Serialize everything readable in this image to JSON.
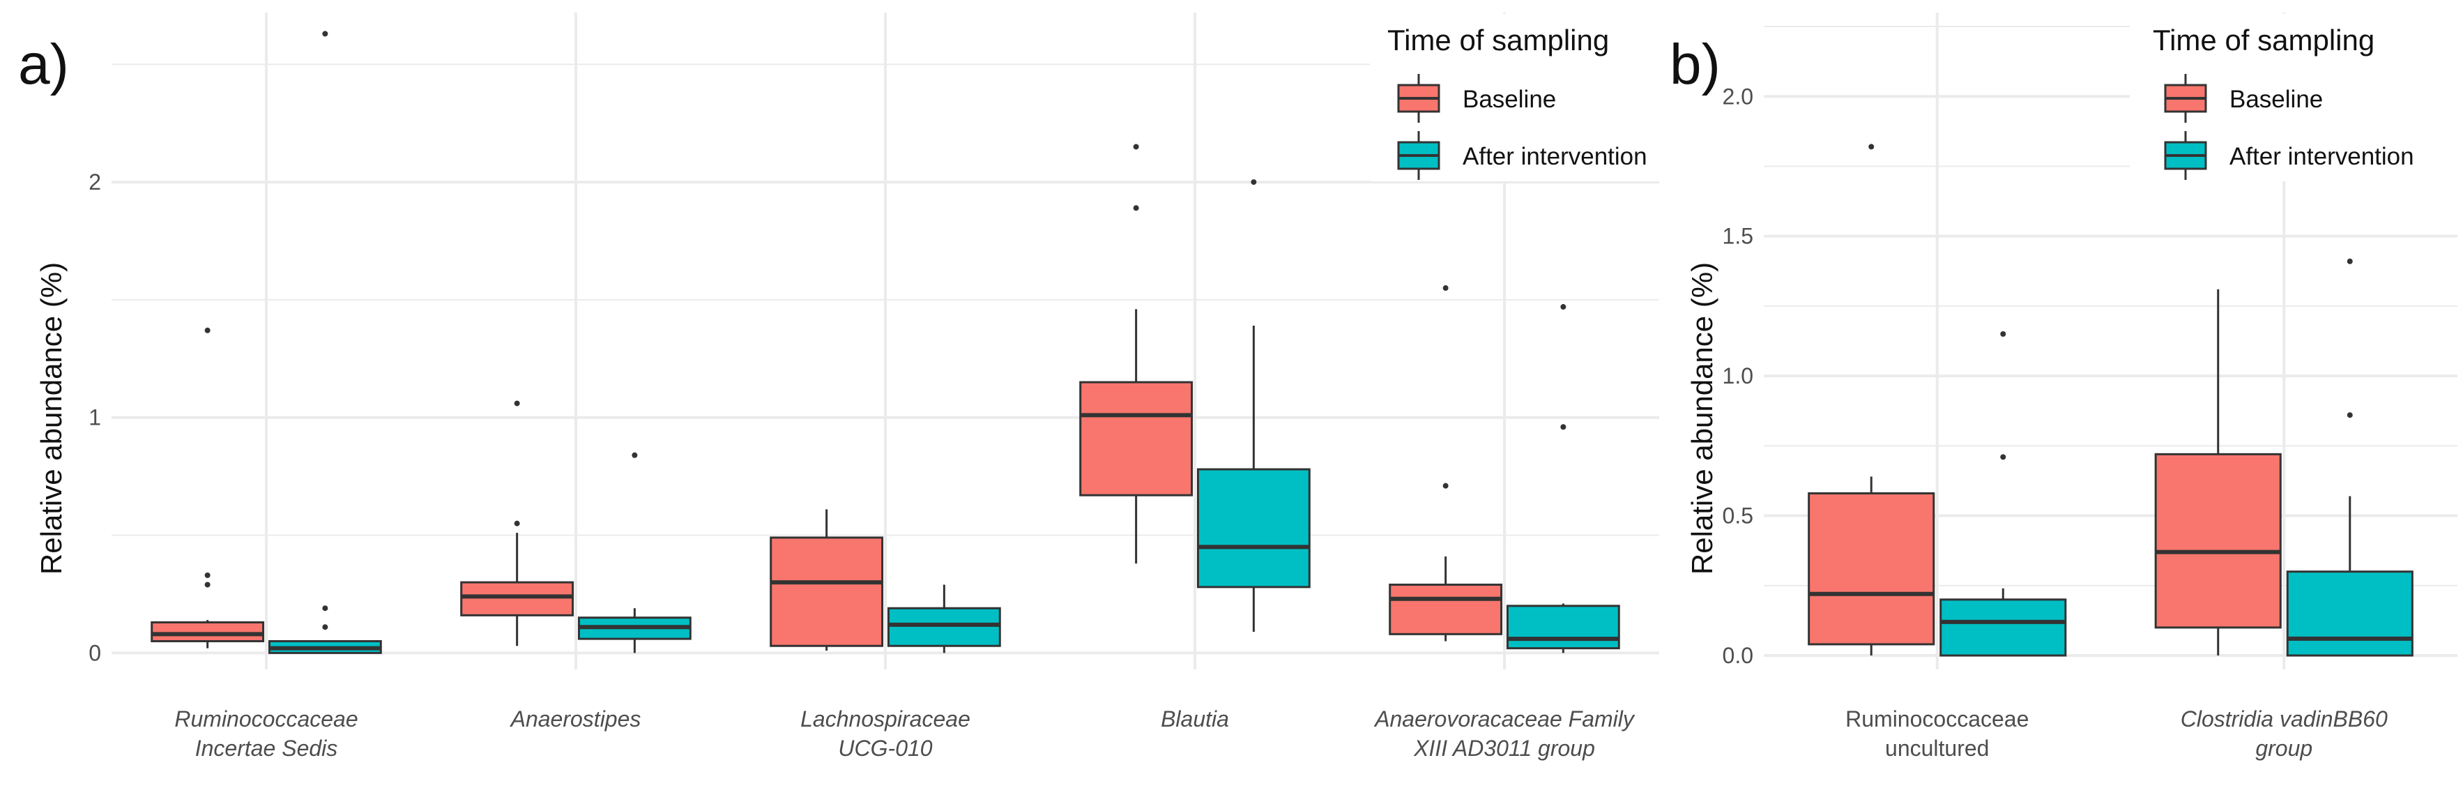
{
  "colors": {
    "baseline": "#f8766d",
    "after": "#00bfc4",
    "box_stroke": "#333333",
    "grid": "#ebebeb"
  },
  "chart_data": [
    {
      "panel": "a)",
      "type": "boxplot",
      "ylabel": "Relative abundance (%)",
      "ylim": [
        -0.07,
        2.72
      ],
      "yticks": [
        0,
        1,
        2
      ],
      "yticklabels": [
        "0",
        "1",
        "2"
      ],
      "grid": true,
      "legend": {
        "title": "Time of sampling",
        "placement": "top-right",
        "entries": [
          "Baseline",
          "After intervention"
        ]
      },
      "categories": [
        {
          "lines": [
            "Ruminococcaceae",
            "Incertae Sedis"
          ],
          "italic": true
        },
        {
          "lines": [
            "Anaerostipes"
          ],
          "italic": true
        },
        {
          "lines": [
            "Lachnospiraceae",
            "UCG-010"
          ],
          "italic": true
        },
        {
          "lines": [
            "Blautia"
          ],
          "italic": true
        },
        {
          "lines": [
            "Anaerovoracaceae Family",
            "XIII AD3011 group"
          ],
          "italic": true
        }
      ],
      "boxes": [
        [
          {
            "q1": 0.05,
            "median": 0.08,
            "q3": 0.13,
            "lower": 0.02,
            "upper": 0.14,
            "outliers": [
              1.37,
              0.33,
              0.29
            ]
          },
          {
            "q1": 0.0,
            "median": 0.02,
            "q3": 0.05,
            "lower": 0.0,
            "upper": 0.05,
            "outliers": [
              2.63,
              0.19,
              0.11
            ]
          }
        ],
        [
          {
            "q1": 0.16,
            "median": 0.24,
            "q3": 0.3,
            "lower": 0.03,
            "upper": 0.51,
            "outliers": [
              1.06,
              0.55
            ]
          },
          {
            "q1": 0.06,
            "median": 0.11,
            "q3": 0.15,
            "lower": 0.0,
            "upper": 0.19,
            "outliers": [
              0.84
            ]
          }
        ],
        [
          {
            "q1": 0.03,
            "median": 0.3,
            "q3": 0.49,
            "lower": 0.01,
            "upper": 0.61,
            "outliers": []
          },
          {
            "q1": 0.03,
            "median": 0.12,
            "q3": 0.19,
            "lower": 0.0,
            "upper": 0.29,
            "outliers": []
          }
        ],
        [
          {
            "q1": 0.67,
            "median": 1.01,
            "q3": 1.15,
            "lower": 0.38,
            "upper": 1.46,
            "outliers": [
              2.15,
              1.89
            ]
          },
          {
            "q1": 0.28,
            "median": 0.45,
            "q3": 0.78,
            "lower": 0.09,
            "upper": 1.39,
            "outliers": [
              2.0
            ]
          }
        ],
        [
          {
            "q1": 0.08,
            "median": 0.23,
            "q3": 0.29,
            "lower": 0.05,
            "upper": 0.41,
            "outliers": [
              1.55,
              0.71
            ]
          },
          {
            "q1": 0.02,
            "median": 0.06,
            "q3": 0.2,
            "lower": 0.0,
            "upper": 0.21,
            "outliers": [
              1.47,
              0.96
            ]
          }
        ]
      ]
    },
    {
      "panel": "b)",
      "type": "boxplot",
      "ylabel": "Relative abundance (%)",
      "ylim": [
        -0.05,
        2.3
      ],
      "yticks": [
        0.0,
        0.5,
        1.0,
        1.5,
        2.0
      ],
      "yticklabels": [
        "0.0",
        "0.5",
        "1.0",
        "1.5",
        "2.0"
      ],
      "grid": true,
      "legend": {
        "title": "Time of sampling",
        "placement": "top-right",
        "entries": [
          "Baseline",
          "After intervention"
        ]
      },
      "categories": [
        {
          "lines": [
            "Ruminococcaceae",
            "uncultured"
          ],
          "italic": false
        },
        {
          "lines": [
            "Clostridia vadinBB60",
            "group"
          ],
          "italic": true
        }
      ],
      "boxes": [
        [
          {
            "q1": 0.04,
            "median": 0.22,
            "q3": 0.58,
            "lower": 0.0,
            "upper": 0.64,
            "outliers": [
              1.82
            ]
          },
          {
            "q1": 0.0,
            "median": 0.12,
            "q3": 0.2,
            "lower": 0.0,
            "upper": 0.24,
            "outliers": [
              1.15,
              0.71
            ]
          }
        ],
        [
          {
            "q1": 0.1,
            "median": 0.37,
            "q3": 0.72,
            "lower": 0.0,
            "upper": 1.31,
            "outliers": []
          },
          {
            "q1": 0.0,
            "median": 0.06,
            "q3": 0.3,
            "lower": 0.0,
            "upper": 0.57,
            "outliers": [
              1.41,
              0.86
            ]
          }
        ]
      ]
    }
  ]
}
